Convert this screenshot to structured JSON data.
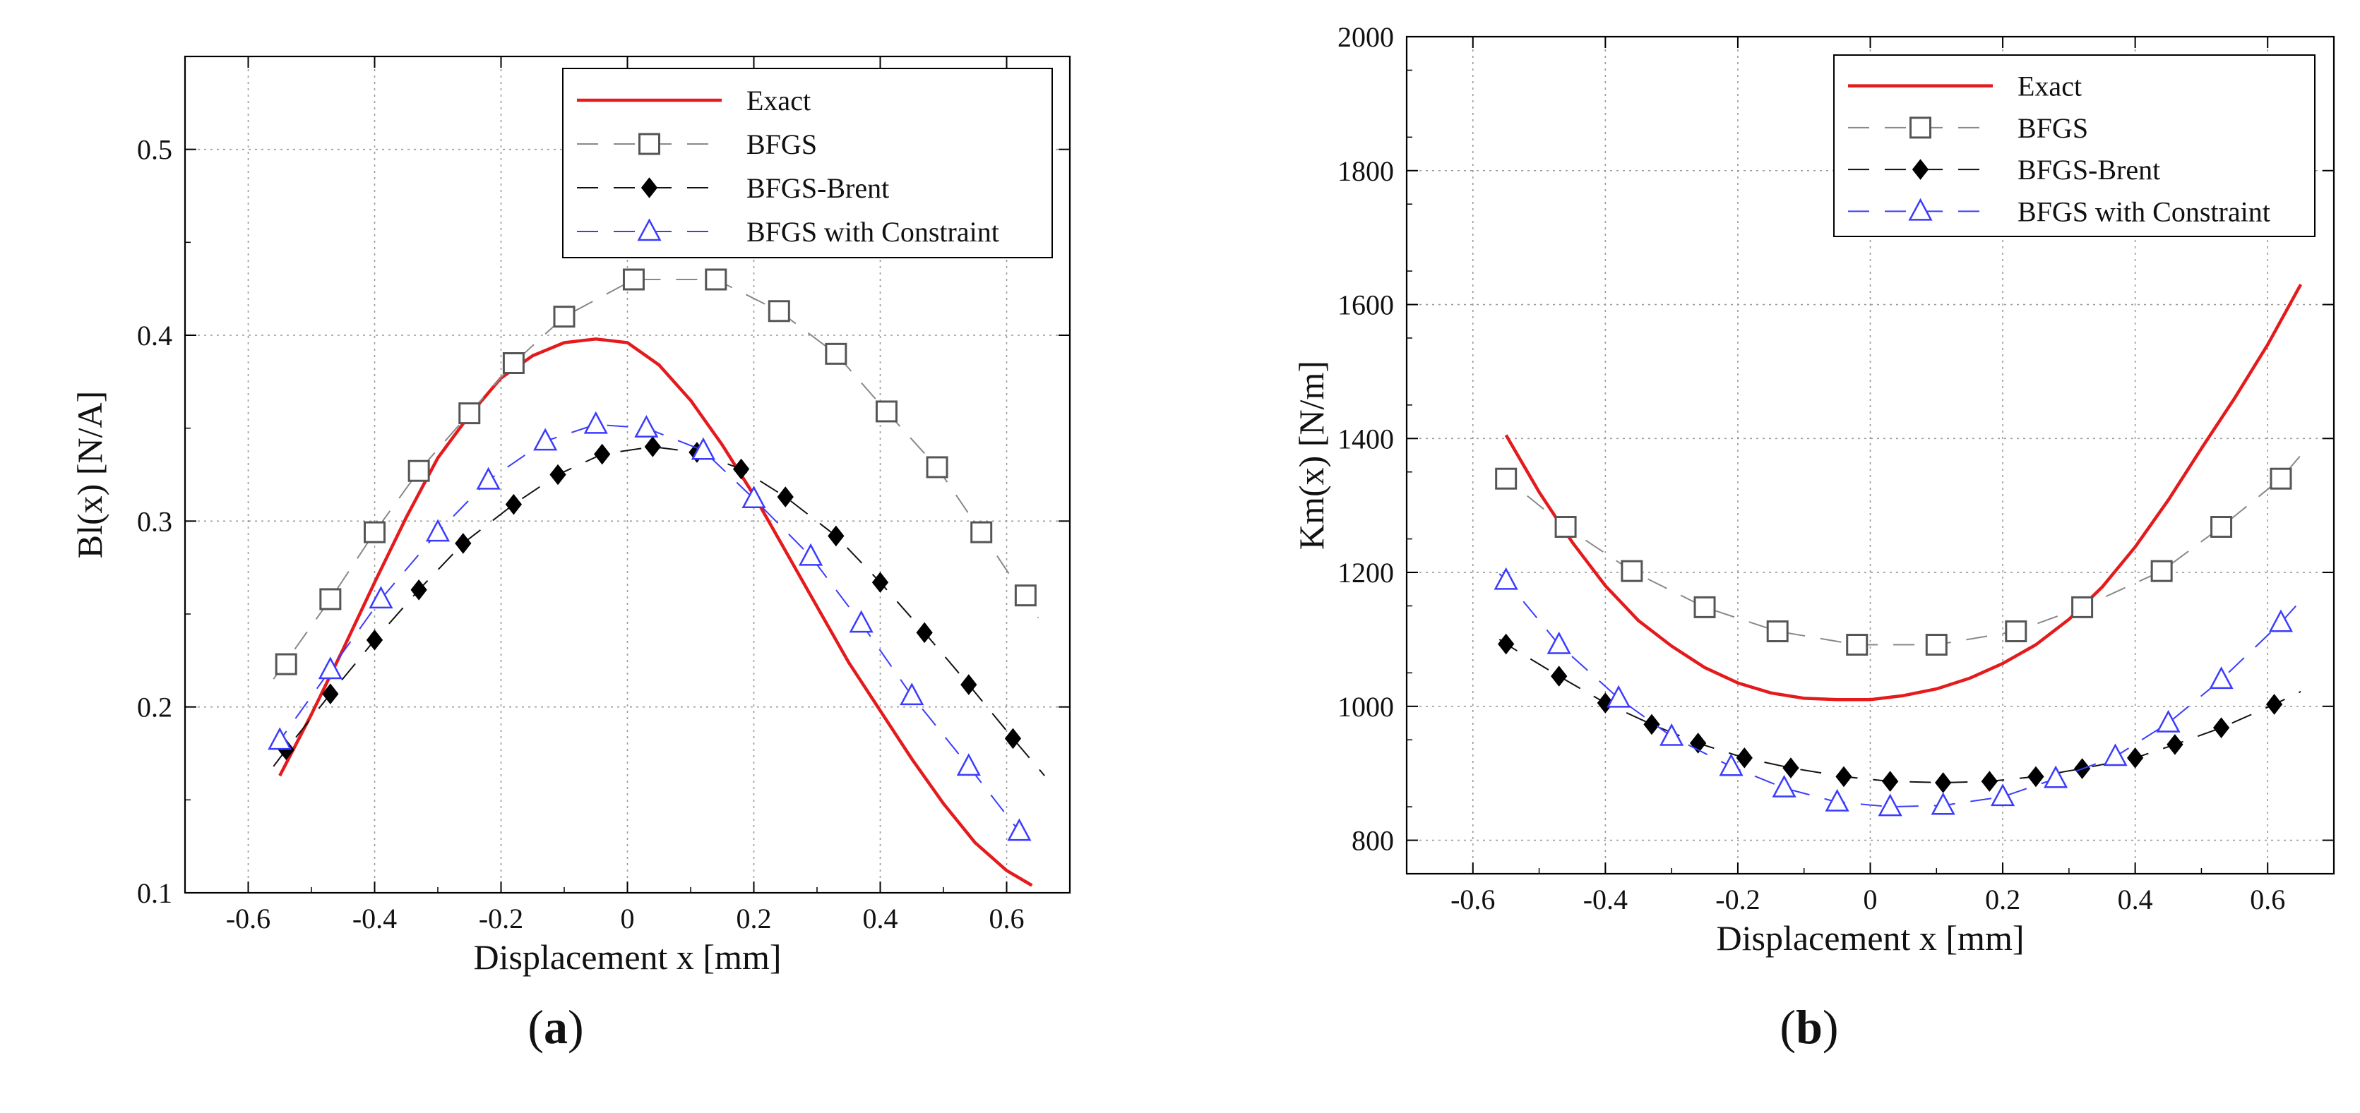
{
  "chart_data": [
    {
      "type": "line",
      "panel_label": "(a)",
      "panel_letter": "a",
      "xlabel": "Displacement x [mm]",
      "ylabel": "Bl(x) [N/A]",
      "xlim": [
        -0.7,
        0.7
      ],
      "ylim": [
        0.1,
        0.55
      ],
      "xticks": [
        -0.6,
        -0.4,
        -0.2,
        0,
        0.2,
        0.4,
        0.6
      ],
      "xtick_labels": [
        "-0.6",
        "-0.4",
        "-0.2",
        "0",
        "0.2",
        "0.4",
        "0.6"
      ],
      "yticks": [
        0.1,
        0.2,
        0.3,
        0.4,
        0.5
      ],
      "ytick_labels": [
        "0.1",
        "0.2",
        "0.3",
        "0.4",
        "0.5"
      ],
      "grid": true,
      "legend": "top-right",
      "series": [
        {
          "name": "Exact",
          "style": "solid",
          "color": "#e41a1c",
          "marker": "none",
          "x": [
            -0.55,
            -0.5,
            -0.45,
            -0.4,
            -0.35,
            -0.3,
            -0.25,
            -0.2,
            -0.15,
            -0.1,
            -0.05,
            0,
            0.05,
            0.1,
            0.15,
            0.2,
            0.25,
            0.3,
            0.35,
            0.4,
            0.45,
            0.5,
            0.55,
            0.6,
            0.64
          ],
          "y": [
            0.163,
            0.196,
            0.231,
            0.267,
            0.302,
            0.334,
            0.357,
            0.377,
            0.389,
            0.396,
            0.398,
            0.396,
            0.384,
            0.365,
            0.341,
            0.314,
            0.284,
            0.254,
            0.224,
            0.198,
            0.172,
            0.148,
            0.127,
            0.112,
            0.104
          ]
        },
        {
          "name": "BFGS",
          "style": "dashed",
          "color": "#888888",
          "marker": "square",
          "x": [
            -0.54,
            -0.47,
            -0.4,
            -0.33,
            -0.25,
            -0.18,
            -0.1,
            0.01,
            0.14,
            0.24,
            0.33,
            0.41,
            0.49,
            0.56,
            0.63
          ],
          "y": [
            0.223,
            0.258,
            0.294,
            0.327,
            0.358,
            0.385,
            0.41,
            0.43,
            0.43,
            0.413,
            0.39,
            0.359,
            0.329,
            0.294,
            0.26
          ],
          "line_x": [
            -0.56,
            -0.47,
            -0.4,
            -0.33,
            -0.25,
            -0.18,
            -0.1,
            0.01,
            0.14,
            0.24,
            0.33,
            0.41,
            0.49,
            0.56,
            0.65
          ],
          "line_y": [
            0.215,
            0.258,
            0.294,
            0.327,
            0.358,
            0.385,
            0.41,
            0.43,
            0.43,
            0.413,
            0.39,
            0.359,
            0.329,
            0.294,
            0.248
          ]
        },
        {
          "name": "BFGS-Brent",
          "style": "dashed",
          "color": "#111111",
          "marker": "diamond",
          "x": [
            -0.54,
            -0.47,
            -0.4,
            -0.33,
            -0.26,
            -0.18,
            -0.11,
            -0.04,
            0.04,
            0.11,
            0.18,
            0.25,
            0.33,
            0.4,
            0.47,
            0.54,
            0.61
          ],
          "y": [
            0.177,
            0.207,
            0.236,
            0.263,
            0.288,
            0.309,
            0.325,
            0.336,
            0.34,
            0.337,
            0.328,
            0.313,
            0.292,
            0.267,
            0.24,
            0.212,
            0.183
          ],
          "line_x": [
            -0.56,
            -0.54,
            -0.47,
            -0.4,
            -0.33,
            -0.26,
            -0.18,
            -0.11,
            -0.04,
            0.04,
            0.11,
            0.18,
            0.25,
            0.33,
            0.4,
            0.47,
            0.54,
            0.61,
            0.66
          ],
          "line_y": [
            0.168,
            0.177,
            0.207,
            0.236,
            0.263,
            0.288,
            0.309,
            0.325,
            0.336,
            0.34,
            0.337,
            0.328,
            0.313,
            0.292,
            0.267,
            0.24,
            0.212,
            0.183,
            0.163
          ]
        },
        {
          "name": "BFGS with Constraint",
          "style": "dashed",
          "color": "#3b3bff",
          "marker": "triangle",
          "x": [
            -0.55,
            -0.47,
            -0.39,
            -0.3,
            -0.22,
            -0.13,
            -0.05,
            0.03,
            0.12,
            0.2,
            0.29,
            0.37,
            0.45,
            0.54,
            0.62
          ],
          "y": [
            0.182,
            0.22,
            0.258,
            0.294,
            0.322,
            0.343,
            0.352,
            0.35,
            0.338,
            0.312,
            0.281,
            0.245,
            0.206,
            0.168,
            0.133
          ],
          "line_x": [
            -0.56,
            -0.55,
            -0.47,
            -0.39,
            -0.3,
            -0.22,
            -0.13,
            -0.05,
            0.03,
            0.12,
            0.2,
            0.29,
            0.37,
            0.45,
            0.54,
            0.62,
            0.64
          ],
          "line_y": [
            0.178,
            0.182,
            0.22,
            0.258,
            0.294,
            0.322,
            0.343,
            0.352,
            0.35,
            0.338,
            0.312,
            0.281,
            0.245,
            0.206,
            0.168,
            0.133,
            0.125
          ]
        }
      ]
    },
    {
      "type": "line",
      "panel_label": "(b)",
      "panel_letter": "b",
      "xlabel": "Displacement x [mm]",
      "ylabel": "Km(x) [N/m]",
      "xlim": [
        -0.7,
        0.7
      ],
      "ylim": [
        750,
        2000
      ],
      "xticks": [
        -0.6,
        -0.4,
        -0.2,
        0,
        0.2,
        0.4,
        0.6
      ],
      "xtick_labels": [
        "-0.6",
        "-0.4",
        "-0.2",
        "0",
        "0.2",
        "0.4",
        "0.6"
      ],
      "yticks": [
        800,
        1000,
        1200,
        1400,
        1600,
        1800,
        2000
      ],
      "ytick_labels": [
        "800",
        "1000",
        "1200",
        "1400",
        "1600",
        "1800",
        "2000"
      ],
      "grid": true,
      "legend": "top-right",
      "series": [
        {
          "name": "Exact",
          "style": "solid",
          "color": "#e41a1c",
          "marker": "none",
          "x": [
            -0.55,
            -0.5,
            -0.45,
            -0.4,
            -0.35,
            -0.3,
            -0.25,
            -0.2,
            -0.15,
            -0.1,
            -0.05,
            0,
            0.05,
            0.1,
            0.15,
            0.2,
            0.25,
            0.3,
            0.35,
            0.4,
            0.45,
            0.5,
            0.55,
            0.6,
            0.65
          ],
          "y": [
            1405,
            1320,
            1245,
            1180,
            1128,
            1090,
            1058,
            1035,
            1020,
            1012,
            1010,
            1010,
            1016,
            1026,
            1042,
            1064,
            1092,
            1130,
            1178,
            1238,
            1308,
            1385,
            1460,
            1540,
            1630
          ]
        },
        {
          "name": "BFGS",
          "style": "dashed",
          "color": "#888888",
          "marker": "square",
          "x": [
            -0.55,
            -0.46,
            -0.36,
            -0.25,
            -0.14,
            -0.02,
            0.1,
            0.22,
            0.32,
            0.44,
            0.53,
            0.62
          ],
          "y": [
            1340,
            1268,
            1202,
            1148,
            1112,
            1092,
            1092,
            1112,
            1148,
            1202,
            1268,
            1340
          ],
          "line_x": [
            -0.56,
            -0.55,
            -0.46,
            -0.36,
            -0.25,
            -0.14,
            -0.02,
            0.1,
            0.22,
            0.32,
            0.44,
            0.53,
            0.62,
            0.65
          ],
          "line_y": [
            1350,
            1340,
            1268,
            1202,
            1148,
            1112,
            1092,
            1092,
            1112,
            1148,
            1202,
            1268,
            1340,
            1375
          ]
        },
        {
          "name": "BFGS-Brent",
          "style": "dashed",
          "color": "#111111",
          "marker": "diamond",
          "x": [
            -0.55,
            -0.47,
            -0.4,
            -0.33,
            -0.26,
            -0.19,
            -0.12,
            -0.04,
            0.03,
            0.11,
            0.18,
            0.25,
            0.32,
            0.4,
            0.46,
            0.53,
            0.61
          ],
          "y": [
            1093,
            1045,
            1005,
            973,
            945,
            923,
            908,
            895,
            888,
            886,
            888,
            895,
            907,
            923,
            943,
            968,
            1003
          ],
          "line_x": [
            -0.56,
            -0.55,
            -0.47,
            -0.4,
            -0.33,
            -0.26,
            -0.19,
            -0.12,
            -0.04,
            0.03,
            0.11,
            0.18,
            0.25,
            0.32,
            0.4,
            0.46,
            0.53,
            0.61,
            0.65
          ],
          "line_y": [
            1100,
            1093,
            1045,
            1005,
            973,
            945,
            923,
            908,
            895,
            888,
            886,
            888,
            895,
            907,
            923,
            943,
            968,
            1003,
            1022
          ]
        },
        {
          "name": "BFGS with Constraint",
          "style": "dashed",
          "color": "#3b3bff",
          "marker": "triangle",
          "x": [
            -0.55,
            -0.47,
            -0.38,
            -0.3,
            -0.21,
            -0.13,
            -0.05,
            0.03,
            0.11,
            0.2,
            0.28,
            0.37,
            0.45,
            0.53,
            0.62
          ],
          "y": [
            1188,
            1092,
            1012,
            955,
            910,
            878,
            857,
            850,
            852,
            865,
            892,
            925,
            975,
            1040,
            1125
          ],
          "line_x": [
            -0.56,
            -0.55,
            -0.47,
            -0.38,
            -0.3,
            -0.21,
            -0.13,
            -0.05,
            0.03,
            0.11,
            0.2,
            0.28,
            0.37,
            0.45,
            0.53,
            0.62,
            0.65
          ],
          "line_y": [
            1198,
            1188,
            1092,
            1012,
            955,
            910,
            878,
            857,
            850,
            852,
            865,
            892,
            925,
            975,
            1040,
            1125,
            1158
          ]
        }
      ]
    }
  ]
}
